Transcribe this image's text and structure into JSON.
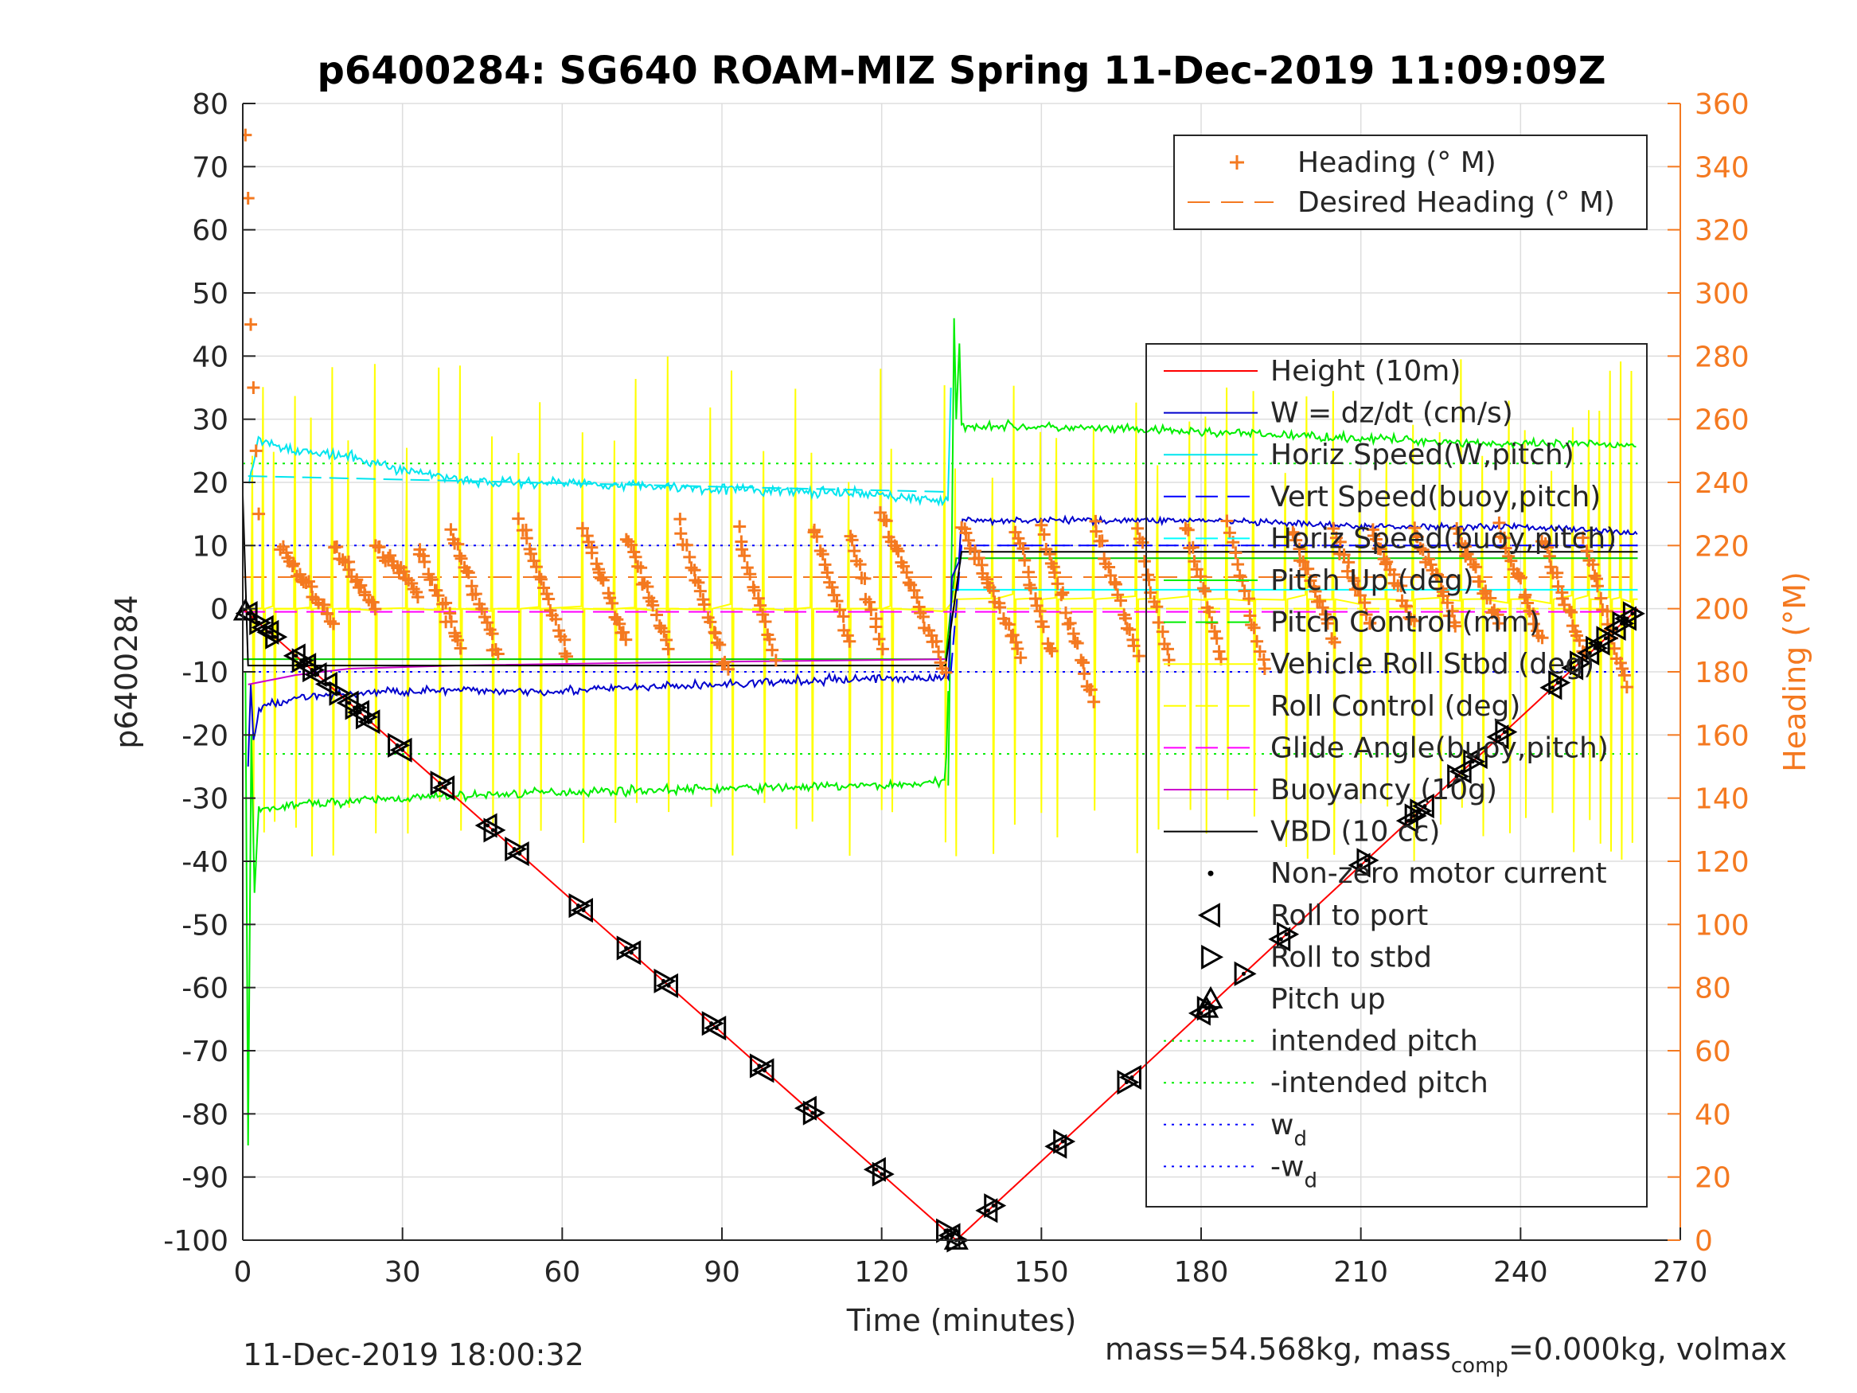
{
  "chart_data": {
    "type": "line",
    "title": "p6400284: SG640 ROAM-MIZ Spring 11-Dec-2019 11:09:09Z",
    "xlabel": "Time (minutes)",
    "ylabel_left": "p6400284",
    "ylabel_right": "Heading (°M)",
    "xlim": [
      0,
      270
    ],
    "ylim_left": [
      -100,
      80
    ],
    "ylim_right": [
      0,
      360
    ],
    "x_ticks": [
      0,
      30,
      60,
      90,
      120,
      150,
      180,
      210,
      240,
      270
    ],
    "y_ticks_left": [
      80,
      70,
      60,
      50,
      40,
      30,
      20,
      10,
      0,
      -10,
      -20,
      -30,
      -40,
      -50,
      -60,
      -70,
      -80,
      -90,
      -100
    ],
    "y_ticks_right": [
      360,
      340,
      320,
      300,
      280,
      260,
      240,
      220,
      200,
      180,
      160,
      140,
      120,
      100,
      80,
      60,
      40,
      20,
      0
    ],
    "grid": true,
    "footer_left": "11-Dec-2019 18:00:32",
    "footer_right": {
      "p1": "mass=54.568kg, mass",
      "p1_sub": "comp",
      "p2": "=0.000kg, volmax"
    },
    "legend_top": {
      "placement": "top-right",
      "entries": [
        "Heading (° M)",
        "Desired Heading (° M)"
      ]
    },
    "legend_main": {
      "placement": "right",
      "entries": [
        {
          "label": "Height (10m)"
        },
        {
          "label": "W = dz/dt (cm/s)"
        },
        {
          "label": "Horiz Speed(W,pitch)"
        },
        {
          "label": "Vert Speed(buoy,pitch)"
        },
        {
          "label": "Horiz Speed(buoy,pitch)"
        },
        {
          "label": "Pitch Up (deg)"
        },
        {
          "label": "Pitch Control (mm)"
        },
        {
          "label": "Vehicle Roll Stbd (deg)"
        },
        {
          "label": "Roll Control (deg)"
        },
        {
          "label": "Glide Angle(buoy,pitch)"
        },
        {
          "label": "Buoyancy (10g)"
        },
        {
          "label": "VBD (10 cc)"
        },
        {
          "label": "Non-zero motor current"
        },
        {
          "label": "Roll to port"
        },
        {
          "label": "Roll to stbd"
        },
        {
          "label": "Pitch up"
        },
        {
          "label": "intended pitch"
        },
        {
          "label": "-intended pitch"
        },
        {
          "label": "w",
          "sub": "d"
        },
        {
          "label": "-w",
          "sub": "d"
        }
      ]
    },
    "colors": {
      "height": "#FF0000",
      "w": "#0000CD",
      "horiz_w": "#00E5EE",
      "vert_buoy": "#0000FF",
      "horiz_buoy": "#00FFFF",
      "pitch": "#00EE00",
      "roll": "#FFFF00",
      "glide": "#FF00FF",
      "buoyancy": "#CC00CC",
      "vbd": "#000000",
      "heading": "#F47920"
    },
    "series": [
      {
        "name": "Height (10m)",
        "x": [
          0,
          134,
          262
        ],
        "y": [
          0,
          -100,
          0
        ]
      },
      {
        "name": "W = dz/dt (cm/s)",
        "x": [
          1,
          3,
          10,
          30,
          60,
          90,
          120,
          133,
          135,
          150,
          180,
          210,
          240,
          262
        ],
        "y": [
          -25,
          -16,
          -14,
          -13,
          -13,
          -12,
          -11,
          -11,
          14,
          14,
          14,
          13,
          13,
          12
        ]
      },
      {
        "name": "Horiz Speed(W,pitch)",
        "x": [
          1,
          3,
          10,
          20,
          30,
          45,
          60,
          75,
          90,
          105,
          120,
          132
        ],
        "y": [
          19,
          27,
          25,
          24,
          22,
          20,
          20,
          19.5,
          19,
          18.5,
          18,
          17
        ]
      },
      {
        "name": "Vert Speed(buoy,pitch)",
        "x": [
          133,
          135,
          262
        ],
        "y": [
          -10,
          10,
          10
        ]
      },
      {
        "name": "Horiz Speed(buoy,pitch)",
        "x": [
          133,
          135,
          262
        ],
        "y": [
          3,
          3,
          3
        ]
      },
      {
        "name": "Pitch Up (deg)",
        "x": [
          1,
          3,
          10,
          30,
          60,
          90,
          120,
          132,
          134,
          140,
          180,
          210,
          240,
          262
        ],
        "y": [
          -80,
          -32,
          -31,
          -30,
          -29,
          -28.5,
          -28,
          -27.5,
          29,
          29,
          28,
          27,
          26,
          26
        ]
      },
      {
        "name": "Pitch Control (mm)",
        "x": [
          0,
          132,
          134,
          262
        ],
        "y": [
          -8,
          -8,
          8,
          8
        ]
      },
      {
        "name": "Glide Angle(buoy,pitch)",
        "x": [
          0,
          262
        ],
        "y": [
          -0.5,
          -0.5
        ]
      },
      {
        "name": "Buoyancy (10g)",
        "x": [
          1,
          10,
          20,
          40,
          80,
          132
        ],
        "y": [
          -12,
          -10.5,
          -9.5,
          -9,
          -8.5,
          -8
        ]
      },
      {
        "name": "VBD (10 cc)",
        "x": [
          0,
          1,
          132,
          135,
          262
        ],
        "y": [
          18,
          -9,
          -9,
          9,
          9
        ]
      },
      {
        "name": "intended pitch",
        "x": [
          0,
          262
        ],
        "y": [
          23,
          23
        ]
      },
      {
        "name": "-intended pitch",
        "x": [
          0,
          262
        ],
        "y": [
          -23,
          -23
        ]
      },
      {
        "name": "w_d",
        "x": [
          0,
          262
        ],
        "y": [
          10,
          10
        ]
      },
      {
        "name": "-w_d",
        "x": [
          0,
          262
        ],
        "y": [
          -10,
          -10
        ]
      },
      {
        "name": "Desired Heading (° M)",
        "x": [
          0,
          262
        ],
        "y_right": [
          210,
          210
        ]
      },
      {
        "name": "Heading (° M)",
        "axis": "right",
        "segments": [
          {
            "x0": 7,
            "x1": 17,
            "y0": 220,
            "y1": 195
          },
          {
            "x0": 17,
            "x1": 25,
            "y0": 220,
            "y1": 200
          },
          {
            "x0": 25,
            "x1": 33,
            "y0": 220,
            "y1": 205
          },
          {
            "x0": 33,
            "x1": 41,
            "y0": 219,
            "y1": 188
          },
          {
            "x0": 39,
            "x1": 48,
            "y0": 226,
            "y1": 185
          },
          {
            "x0": 52,
            "x1": 61,
            "y0": 228,
            "y1": 185
          },
          {
            "x0": 64,
            "x1": 72,
            "y0": 225,
            "y1": 190
          },
          {
            "x0": 72,
            "x1": 80,
            "y0": 224,
            "y1": 188
          },
          {
            "x0": 82,
            "x1": 91,
            "y0": 226,
            "y1": 180
          },
          {
            "x0": 93,
            "x1": 100,
            "y0": 224,
            "y1": 185
          },
          {
            "x0": 107,
            "x1": 114,
            "y0": 226,
            "y1": 190
          },
          {
            "x0": 114,
            "x1": 120,
            "y0": 224,
            "y1": 188
          },
          {
            "x0": 120,
            "x1": 132,
            "y0": 230,
            "y1": 180
          },
          {
            "x0": 135,
            "x1": 146,
            "y0": 227,
            "y1": 185
          },
          {
            "x0": 145,
            "x1": 152,
            "y0": 225,
            "y1": 185
          },
          {
            "x0": 150,
            "x1": 160,
            "y0": 225,
            "y1": 170
          },
          {
            "x0": 160,
            "x1": 168,
            "y0": 227,
            "y1": 185
          },
          {
            "x0": 168,
            "x1": 174,
            "y0": 226,
            "y1": 183
          },
          {
            "x0": 177,
            "x1": 184,
            "y0": 227,
            "y1": 185
          },
          {
            "x0": 185,
            "x1": 192,
            "y0": 227,
            "y1": 180
          },
          {
            "x0": 197,
            "x1": 205,
            "y0": 225,
            "y1": 190
          },
          {
            "x0": 205,
            "x1": 212,
            "y0": 225,
            "y1": 195
          },
          {
            "x0": 212,
            "x1": 220,
            "y0": 225,
            "y1": 195
          },
          {
            "x0": 220,
            "x1": 228,
            "y0": 225,
            "y1": 195
          },
          {
            "x0": 228,
            "x1": 236,
            "y0": 225,
            "y1": 195
          },
          {
            "x0": 236,
            "x1": 244,
            "y0": 225,
            "y1": 190
          },
          {
            "x0": 244,
            "x1": 252,
            "y0": 222,
            "y1": 185
          },
          {
            "x0": 252,
            "x1": 260,
            "y0": 222,
            "y1": 175
          }
        ],
        "spike": {
          "x": [
            0.5,
            1,
            1.5,
            2,
            2.5,
            3
          ],
          "y_right": [
            350,
            330,
            290,
            270,
            250,
            230
          ]
        }
      }
    ],
    "markers": {
      "roll_to_port_x": [
        1,
        4,
        5,
        10,
        12,
        14,
        16,
        20,
        22,
        24,
        30,
        38,
        46,
        52,
        64,
        73,
        80,
        89,
        98,
        106,
        119,
        133,
        140,
        153,
        167,
        180,
        195,
        210,
        219,
        222,
        229,
        232,
        236,
        246,
        250,
        253,
        255,
        258,
        260
      ],
      "roll_to_stbd_x": [
        3,
        6,
        11,
        13,
        18,
        21,
        23,
        29,
        37,
        47,
        51,
        63,
        72,
        79,
        88,
        97,
        107,
        120,
        132,
        134,
        141,
        154,
        166,
        181,
        188,
        196,
        211,
        220,
        221,
        228,
        231,
        237,
        247,
        251,
        254,
        256,
        259,
        261
      ],
      "pitch_up_x": [
        0.5,
        134,
        181
      ]
    }
  }
}
